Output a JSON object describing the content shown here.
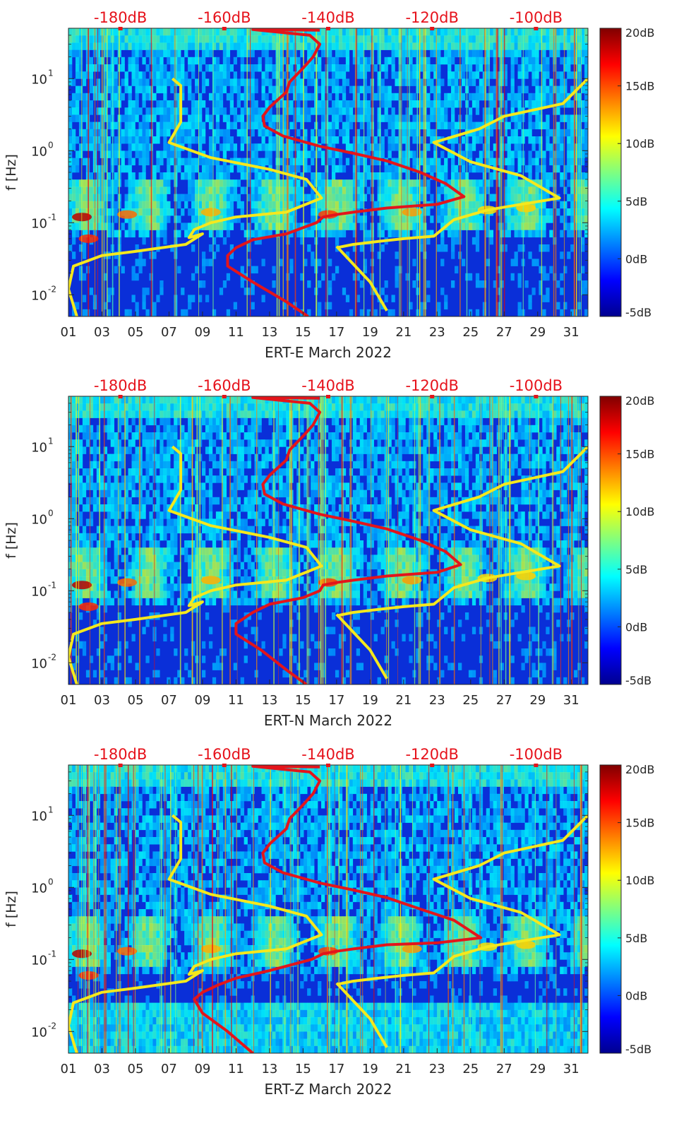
{
  "chart_data": [
    {
      "type": "heatmap",
      "id": "ERT-E",
      "xlabel": "ERT-E March 2022",
      "ylabel": "f [Hz]",
      "x_tick_labels": [
        "01",
        "03",
        "05",
        "07",
        "09",
        "11",
        "13",
        "15",
        "17",
        "19",
        "21",
        "23",
        "25",
        "27",
        "29",
        "31"
      ],
      "y_tick_labels": [
        "10^1",
        "10^0",
        "10^-1",
        "10^-2"
      ],
      "top_axis_labels": [
        "-180dB",
        "-160dB",
        "-140dB",
        "-120dB",
        "-100dB"
      ],
      "colorbar_labels": [
        "20dB",
        "15dB",
        "10dB",
        "5dB",
        "0dB",
        "-5dB"
      ],
      "xlim": [
        1,
        32
      ],
      "ylim_hz": [
        0.005,
        50
      ],
      "y_scale": "log",
      "top_axis_range_db": [
        -190,
        -90
      ],
      "colorbar_range_db": [
        -5,
        20
      ],
      "colormap": "jet",
      "series": [
        {
          "color": "#f5e81d",
          "style": "line",
          "points": [
            [
              7.2,
              10
            ],
            [
              7.7,
              8
            ],
            [
              7.7,
              2.5
            ],
            [
              7,
              1.3
            ],
            [
              9.5,
              0.8
            ],
            [
              13,
              0.55
            ],
            [
              15.2,
              0.4
            ],
            [
              16.1,
              0.22
            ],
            [
              14,
              0.14
            ],
            [
              11,
              0.12
            ],
            [
              9.5,
              0.1
            ],
            [
              8.5,
              0.08
            ],
            [
              8.2,
              0.062
            ],
            [
              9,
              0.07
            ],
            [
              8,
              0.05
            ],
            [
              5,
              0.04
            ],
            [
              3,
              0.035
            ],
            [
              1.3,
              0.025
            ],
            [
              1,
              0.012
            ],
            [
              1.5,
              0.005
            ]
          ]
        },
        {
          "color": "#f5e81d",
          "style": "line",
          "points": [
            [
              17,
              0.047
            ],
            [
              19,
              0.015
            ],
            [
              20,
              0.006
            ]
          ]
        },
        {
          "color": "#f5e81d",
          "style": "line",
          "points": [
            [
              32,
              10
            ],
            [
              30.5,
              4.5
            ],
            [
              27,
              3
            ],
            [
              25.5,
              2
            ],
            [
              22.8,
              1.3
            ],
            [
              25,
              0.7
            ],
            [
              28,
              0.45
            ],
            [
              30.3,
              0.22
            ],
            [
              28,
              0.18
            ],
            [
              26,
              0.15
            ],
            [
              24,
              0.11
            ],
            [
              22.8,
              0.065
            ],
            [
              21,
              0.06
            ],
            [
              19.5,
              0.055
            ],
            [
              18,
              0.05
            ],
            [
              17,
              0.045
            ]
          ]
        },
        {
          "color": "#e3151b",
          "style": "line",
          "points": [
            [
              16,
              47
            ],
            [
              12,
              48
            ],
            [
              15.4,
              40
            ],
            [
              16,
              30
            ],
            [
              15.6,
              20
            ],
            [
              15,
              14
            ],
            [
              14.2,
              9
            ],
            [
              14,
              6.5
            ],
            [
              13,
              4
            ],
            [
              12.6,
              3
            ],
            [
              12.7,
              2.2
            ],
            [
              13.8,
              1.6
            ],
            [
              16,
              1.15
            ],
            [
              18,
              0.92
            ],
            [
              20,
              0.72
            ],
            [
              22,
              0.5
            ],
            [
              23.5,
              0.35
            ],
            [
              24.6,
              0.23
            ],
            [
              23,
              0.18
            ],
            [
              20,
              0.16
            ],
            [
              18,
              0.14
            ],
            [
              17,
              0.13
            ],
            [
              16.2,
              0.12
            ],
            [
              15.8,
              0.1
            ],
            [
              14,
              0.07
            ],
            [
              12,
              0.058
            ],
            [
              11,
              0.045
            ],
            [
              10.5,
              0.035
            ],
            [
              10.5,
              0.025
            ],
            [
              12,
              0.015
            ],
            [
              14,
              0.008
            ],
            [
              15.3,
              0.005
            ]
          ]
        }
      ]
    },
    {
      "type": "heatmap",
      "id": "ERT-N",
      "xlabel": "ERT-N March 2022",
      "ylabel": "f [Hz]",
      "x_tick_labels": [
        "01",
        "03",
        "05",
        "07",
        "09",
        "11",
        "13",
        "15",
        "17",
        "19",
        "21",
        "23",
        "25",
        "27",
        "29",
        "31"
      ],
      "y_tick_labels": [
        "10^1",
        "10^0",
        "10^-1",
        "10^-2"
      ],
      "top_axis_labels": [
        "-180dB",
        "-160dB",
        "-140dB",
        "-120dB",
        "-100dB"
      ],
      "colorbar_labels": [
        "20dB",
        "15dB",
        "10dB",
        "5dB",
        "0dB",
        "-5dB"
      ],
      "xlim": [
        1,
        32
      ],
      "ylim_hz": [
        0.005,
        50
      ],
      "y_scale": "log",
      "top_axis_range_db": [
        -190,
        -90
      ],
      "colorbar_range_db": [
        -5,
        20
      ],
      "colormap": "jet",
      "series": [
        {
          "color": "#f5e81d",
          "style": "line",
          "points": [
            [
              7.2,
              10
            ],
            [
              7.7,
              8
            ],
            [
              7.7,
              2.5
            ],
            [
              7,
              1.3
            ],
            [
              9.5,
              0.8
            ],
            [
              13,
              0.55
            ],
            [
              15.2,
              0.4
            ],
            [
              16.1,
              0.22
            ],
            [
              14,
              0.14
            ],
            [
              11,
              0.12
            ],
            [
              9.5,
              0.1
            ],
            [
              8.5,
              0.08
            ],
            [
              8.2,
              0.062
            ],
            [
              9,
              0.07
            ],
            [
              8,
              0.05
            ],
            [
              5,
              0.04
            ],
            [
              3,
              0.035
            ],
            [
              1.3,
              0.025
            ],
            [
              1,
              0.012
            ],
            [
              1.5,
              0.005
            ]
          ]
        },
        {
          "color": "#f5e81d",
          "style": "line",
          "points": [
            [
              17,
              0.047
            ],
            [
              19,
              0.015
            ],
            [
              20,
              0.006
            ]
          ]
        },
        {
          "color": "#f5e81d",
          "style": "line",
          "points": [
            [
              32,
              10
            ],
            [
              30.5,
              4.5
            ],
            [
              27,
              3
            ],
            [
              25.5,
              2
            ],
            [
              22.8,
              1.3
            ],
            [
              25,
              0.7
            ],
            [
              28,
              0.45
            ],
            [
              30.3,
              0.22
            ],
            [
              28,
              0.18
            ],
            [
              26,
              0.15
            ],
            [
              24,
              0.11
            ],
            [
              22.8,
              0.065
            ],
            [
              21,
              0.06
            ],
            [
              19.5,
              0.055
            ],
            [
              18,
              0.05
            ],
            [
              17,
              0.045
            ]
          ]
        },
        {
          "color": "#e3151b",
          "style": "line",
          "points": [
            [
              16,
              47
            ],
            [
              12,
              48
            ],
            [
              15.4,
              40
            ],
            [
              16,
              30
            ],
            [
              15.6,
              20
            ],
            [
              15,
              14
            ],
            [
              14.2,
              9
            ],
            [
              14,
              6.5
            ],
            [
              13,
              4
            ],
            [
              12.6,
              3
            ],
            [
              12.7,
              2.2
            ],
            [
              13.8,
              1.6
            ],
            [
              16,
              1.15
            ],
            [
              18,
              0.92
            ],
            [
              20,
              0.72
            ],
            [
              22,
              0.5
            ],
            [
              23.5,
              0.35
            ],
            [
              24.4,
              0.23
            ],
            [
              23,
              0.18
            ],
            [
              20,
              0.16
            ],
            [
              18,
              0.14
            ],
            [
              17,
              0.13
            ],
            [
              16.2,
              0.12
            ],
            [
              16,
              0.1
            ],
            [
              15,
              0.08
            ],
            [
              13,
              0.065
            ],
            [
              12,
              0.05
            ],
            [
              11,
              0.035
            ],
            [
              11,
              0.025
            ],
            [
              12.5,
              0.015
            ],
            [
              14,
              0.008
            ],
            [
              15.2,
              0.005
            ]
          ]
        }
      ]
    },
    {
      "type": "heatmap",
      "id": "ERT-Z",
      "xlabel": "ERT-Z March 2022",
      "ylabel": "f [Hz]",
      "x_tick_labels": [
        "01",
        "03",
        "05",
        "07",
        "09",
        "11",
        "13",
        "15",
        "17",
        "19",
        "21",
        "23",
        "25",
        "27",
        "29",
        "31"
      ],
      "y_tick_labels": [
        "10^1",
        "10^0",
        "10^-1",
        "10^-2"
      ],
      "top_axis_labels": [
        "-180dB",
        "-160dB",
        "-140dB",
        "-120dB",
        "-100dB"
      ],
      "colorbar_labels": [
        "20dB",
        "15dB",
        "10dB",
        "5dB",
        "0dB",
        "-5dB"
      ],
      "xlim": [
        1,
        32
      ],
      "ylim_hz": [
        0.005,
        50
      ],
      "y_scale": "log",
      "top_axis_range_db": [
        -190,
        -90
      ],
      "colorbar_range_db": [
        -5,
        20
      ],
      "colormap": "jet",
      "series": [
        {
          "color": "#f5e81d",
          "style": "line",
          "points": [
            [
              7.2,
              10
            ],
            [
              7.7,
              8
            ],
            [
              7.7,
              2.5
            ],
            [
              7,
              1.3
            ],
            [
              9.5,
              0.8
            ],
            [
              13,
              0.55
            ],
            [
              15.2,
              0.4
            ],
            [
              16.1,
              0.22
            ],
            [
              14,
              0.14
            ],
            [
              11,
              0.12
            ],
            [
              9.5,
              0.1
            ],
            [
              8.5,
              0.08
            ],
            [
              8.2,
              0.062
            ],
            [
              9,
              0.07
            ],
            [
              8,
              0.05
            ],
            [
              5,
              0.04
            ],
            [
              3,
              0.035
            ],
            [
              1.3,
              0.025
            ],
            [
              1,
              0.012
            ],
            [
              1.5,
              0.005
            ]
          ]
        },
        {
          "color": "#f5e81d",
          "style": "line",
          "points": [
            [
              17,
              0.047
            ],
            [
              19,
              0.015
            ],
            [
              20,
              0.006
            ]
          ]
        },
        {
          "color": "#f5e81d",
          "style": "line",
          "points": [
            [
              32,
              10
            ],
            [
              30.5,
              4.5
            ],
            [
              27,
              3
            ],
            [
              25.5,
              2
            ],
            [
              22.8,
              1.3
            ],
            [
              25,
              0.7
            ],
            [
              28,
              0.45
            ],
            [
              30.3,
              0.22
            ],
            [
              28,
              0.18
            ],
            [
              26,
              0.15
            ],
            [
              24,
              0.11
            ],
            [
              22.8,
              0.065
            ],
            [
              21,
              0.06
            ],
            [
              19.5,
              0.055
            ],
            [
              18,
              0.05
            ],
            [
              17,
              0.045
            ]
          ]
        },
        {
          "color": "#e3151b",
          "style": "line",
          "points": [
            [
              16,
              47
            ],
            [
              12,
              48
            ],
            [
              15.4,
              40
            ],
            [
              16,
              30
            ],
            [
              15.6,
              20
            ],
            [
              15,
              14
            ],
            [
              14.2,
              9
            ],
            [
              14,
              6.5
            ],
            [
              13,
              4
            ],
            [
              12.6,
              3
            ],
            [
              12.7,
              2.2
            ],
            [
              13.8,
              1.6
            ],
            [
              16,
              1.15
            ],
            [
              18,
              0.92
            ],
            [
              20,
              0.72
            ],
            [
              22,
              0.5
            ],
            [
              24,
              0.35
            ],
            [
              25.6,
              0.2
            ],
            [
              23,
              0.17
            ],
            [
              20,
              0.16
            ],
            [
              18,
              0.14
            ],
            [
              17,
              0.13
            ],
            [
              16.2,
              0.12
            ],
            [
              15.5,
              0.1
            ],
            [
              13,
              0.07
            ],
            [
              11,
              0.055
            ],
            [
              10,
              0.045
            ],
            [
              9,
              0.035
            ],
            [
              8.5,
              0.028
            ],
            [
              9,
              0.018
            ],
            [
              10.5,
              0.01
            ],
            [
              12,
              0.005
            ]
          ]
        }
      ]
    }
  ],
  "colors": {
    "axis_text": "#262626",
    "top_axis_text": "#e6121b",
    "yellow_curve": "#f5e81d",
    "red_curve": "#e3151b"
  }
}
